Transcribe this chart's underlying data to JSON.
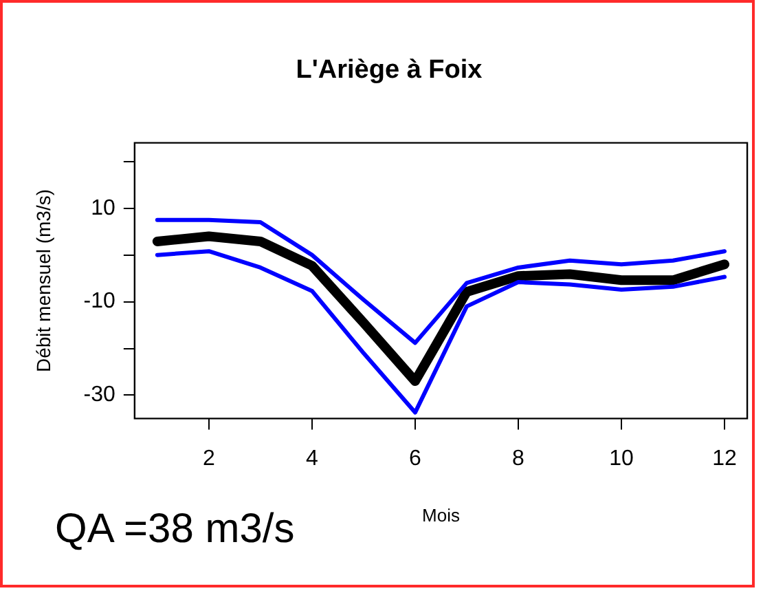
{
  "chart_data": {
    "type": "line",
    "title": "L'Ariège à Foix",
    "xlabel": "Mois",
    "ylabel": "Débit mensuel (m3/s)",
    "annotations": [
      "QA =38 m3/s"
    ],
    "x": [
      1,
      2,
      3,
      4,
      5,
      6,
      7,
      8,
      9,
      10,
      11,
      12
    ],
    "series": [
      {
        "color": "#0000ff",
        "values": [
          7.5,
          7.5,
          7.0,
          0,
          -9.6,
          -18.8,
          -6.0,
          -2.7,
          -1.2,
          -2.0,
          -1.2,
          0.8
        ]
      },
      {
        "color": "#0000ff",
        "values": [
          0,
          0.8,
          -2.7,
          -7.7,
          -21,
          -33.7,
          -11,
          -5.8,
          -6.3,
          -7.4,
          -6.8,
          -4.7
        ]
      },
      {
        "color": "#000000",
        "values": [
          2.9,
          4.0,
          2.9,
          -2.3,
          -14.5,
          -27,
          -7.9,
          -4.5,
          -4.1,
          -5.4,
          -5.4,
          -2.0
        ]
      }
    ],
    "xlim": [
      0.56,
      12.44
    ],
    "ylim": [
      -35,
      24
    ],
    "xticks": [
      2,
      4,
      6,
      8,
      10,
      12
    ],
    "yticks": [
      {
        "value": 20,
        "label": null
      },
      10,
      {
        "value": 0,
        "label": null
      },
      -10,
      {
        "value": -20,
        "label": null
      },
      -30
    ],
    "grid": false,
    "legend": false,
    "marker": "none",
    "line_style": "solid"
  }
}
